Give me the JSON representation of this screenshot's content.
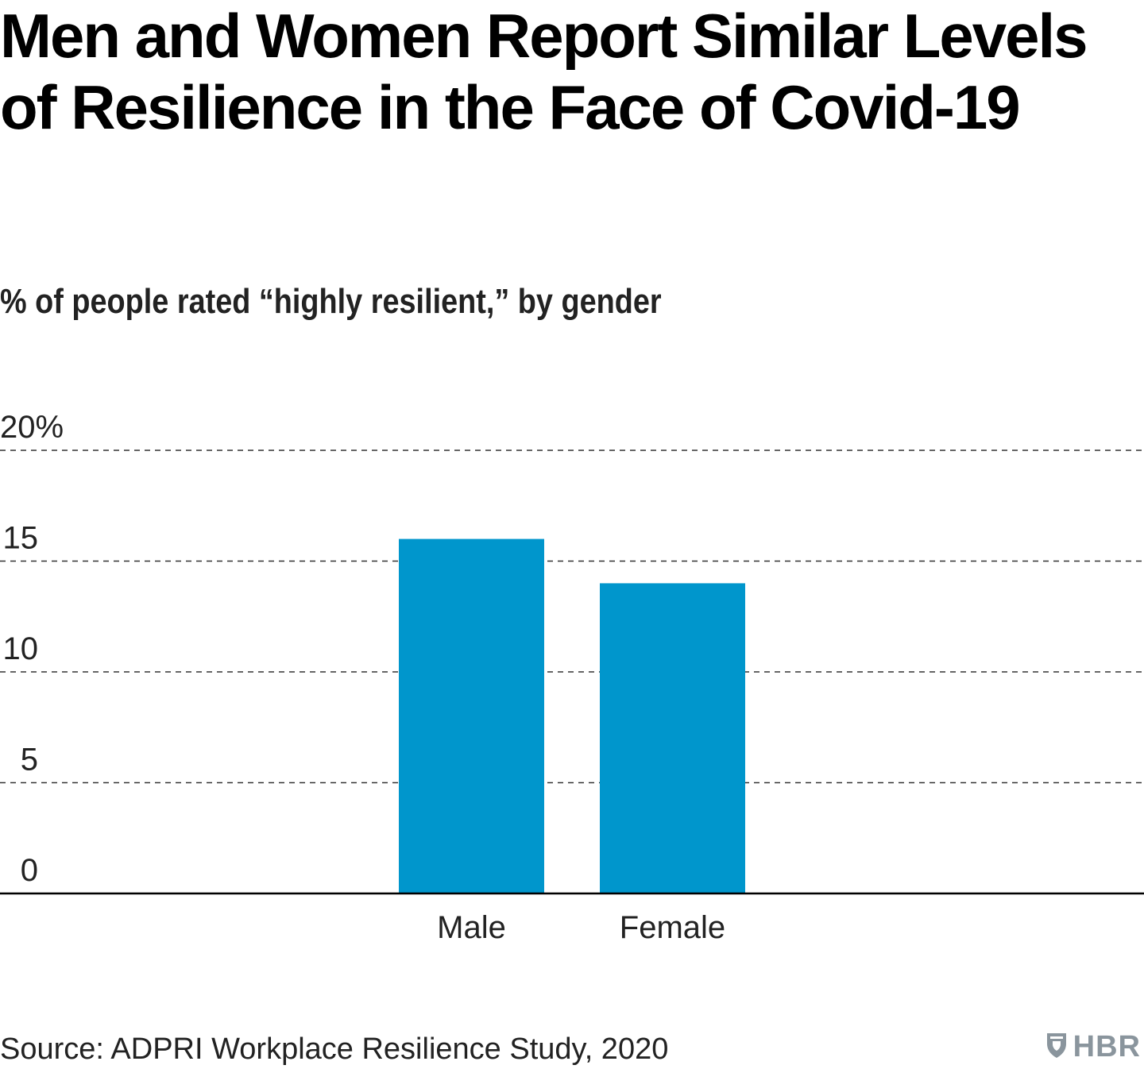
{
  "title": "Men and Women Report Similar Levels of Resilience in the Face of Covid-19",
  "subtitle": "% of people rated “highly resilient,” by gender",
  "source": "Source: ADPRI Workplace Resilience Study, 2020",
  "logo": {
    "icon": "hbr-shield-icon",
    "text": "HBR",
    "color": "#8a959d"
  },
  "colors": {
    "bar": "#0096cc",
    "gridline": "#333333",
    "axis": "#000000"
  },
  "chart_data": {
    "type": "bar",
    "categories": [
      "Male",
      "Female"
    ],
    "values": [
      16,
      14
    ],
    "ylim": [
      0,
      20
    ],
    "yticks": [
      0,
      5,
      10,
      15,
      20
    ],
    "ytick_labels": [
      "0",
      "5",
      "10",
      "15",
      "20%"
    ],
    "title": "Men and Women Report Similar Levels of Resilience in the Face of Covid-19",
    "subtitle": "% of people rated “highly resilient,” by gender",
    "xlabel": "",
    "ylabel": "",
    "grid": true,
    "grid_style": "dashed",
    "legend": "none"
  }
}
